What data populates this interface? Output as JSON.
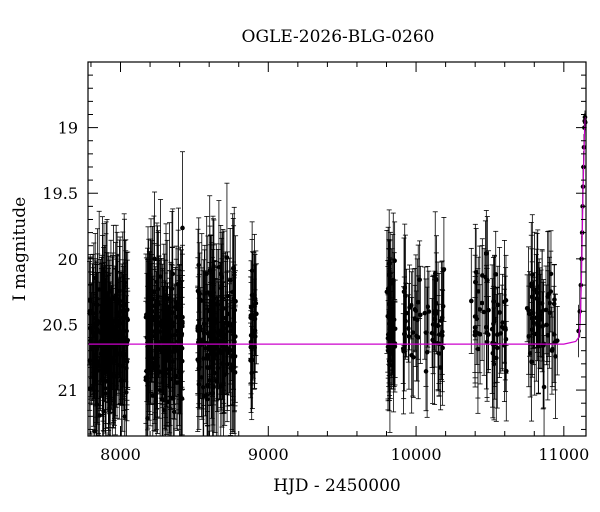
{
  "chart_data": {
    "type": "scatter",
    "title": "OGLE-2026-BLG-0260",
    "xlabel": "HJD - 2450000",
    "ylabel": "I magnitude",
    "xlim": [
      7780,
      11150
    ],
    "ylim": [
      21.35,
      18.5
    ],
    "y_inverted": true,
    "x_ticks": [
      8000,
      9000,
      10000,
      11000
    ],
    "y_ticks": [
      19,
      19.5,
      20,
      20.5,
      21
    ],
    "y_tick_labels": [
      "19",
      "19.5",
      "20",
      "20.5",
      "21"
    ],
    "series": [
      {
        "kind": "observations",
        "marker": "filled-circle-with-errorbars",
        "color": "#000000",
        "seasons": [
          {
            "start": 7790,
            "end": 8050,
            "n": 180,
            "mean": 20.6,
            "scatter": 0.38,
            "err_min": 0.3,
            "err_max": 0.6
          },
          {
            "start": 8170,
            "end": 8420,
            "n": 170,
            "mean": 20.6,
            "scatter": 0.38,
            "err_min": 0.3,
            "err_max": 0.6
          },
          {
            "start": 8520,
            "end": 8780,
            "n": 150,
            "mean": 20.6,
            "scatter": 0.38,
            "err_min": 0.3,
            "err_max": 0.6
          },
          {
            "start": 8880,
            "end": 8920,
            "n": 25,
            "mean": 20.5,
            "scatter": 0.3,
            "err_min": 0.25,
            "err_max": 0.5
          },
          {
            "start": 9800,
            "end": 9860,
            "n": 45,
            "mean": 20.4,
            "scatter": 0.35,
            "err_min": 0.25,
            "err_max": 0.55
          },
          {
            "start": 9910,
            "end": 10200,
            "n": 55,
            "mean": 20.45,
            "scatter": 0.28,
            "err_min": 0.25,
            "err_max": 0.5
          },
          {
            "start": 10370,
            "end": 10620,
            "n": 50,
            "mean": 20.5,
            "scatter": 0.3,
            "err_min": 0.25,
            "err_max": 0.5
          },
          {
            "start": 10740,
            "end": 10960,
            "n": 50,
            "mean": 20.45,
            "scatter": 0.28,
            "err_min": 0.25,
            "err_max": 0.5
          }
        ],
        "peak_points": [
          {
            "x": 11100,
            "y": 20.55,
            "err": 0.2
          },
          {
            "x": 11108,
            "y": 20.4,
            "err": 0.2
          },
          {
            "x": 11115,
            "y": 20.2,
            "err": 0.2
          },
          {
            "x": 11120,
            "y": 20.0,
            "err": 0.18
          },
          {
            "x": 11124,
            "y": 19.8,
            "err": 0.18
          },
          {
            "x": 11127,
            "y": 19.6,
            "err": 0.15
          },
          {
            "x": 11130,
            "y": 19.45,
            "err": 0.15
          },
          {
            "x": 11133,
            "y": 19.3,
            "err": 0.12
          },
          {
            "x": 11136,
            "y": 19.15,
            "err": 0.1
          },
          {
            "x": 11139,
            "y": 19.0,
            "err": 0.08
          },
          {
            "x": 11141,
            "y": 18.95,
            "err": 0.06
          },
          {
            "x": 11143,
            "y": 18.92,
            "err": 0.05
          },
          {
            "x": 11145,
            "y": 18.96,
            "err": 0.06
          }
        ]
      },
      {
        "kind": "model",
        "color": "#cc00cc",
        "baseline_mag": 20.65,
        "x": [
          7780,
          11000,
          11080,
          11100,
          11110,
          11118,
          11125,
          11130,
          11135,
          11140,
          11144,
          11147,
          11150
        ],
        "y": [
          20.65,
          20.65,
          20.63,
          20.6,
          20.5,
          20.2,
          19.8,
          19.5,
          19.25,
          19.05,
          18.95,
          18.92,
          18.93
        ]
      }
    ]
  }
}
